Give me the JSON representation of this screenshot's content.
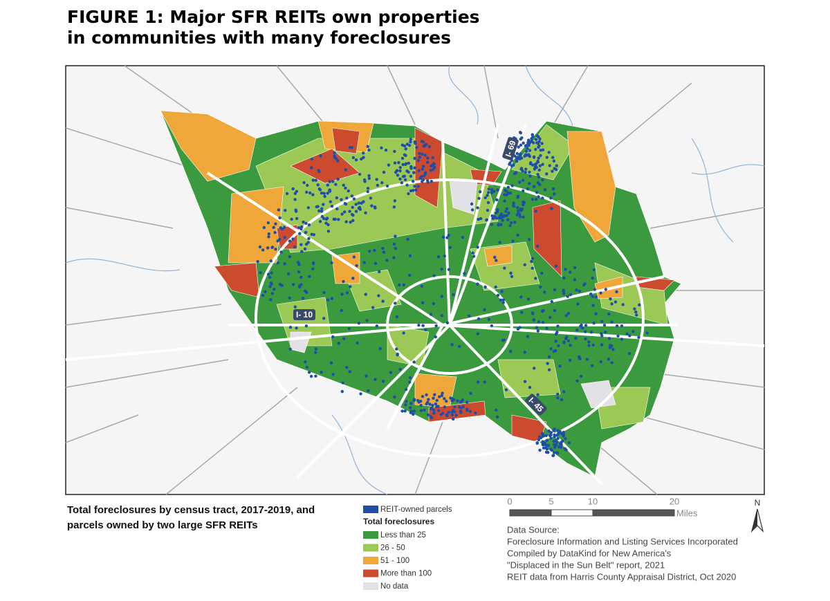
{
  "header": {
    "title": [
      "FIGURE 1: Major SFR REITs own properties",
      "in communities with many foreclosures"
    ]
  },
  "map": {
    "road_labels": [
      "I- 69",
      "I- 10",
      "I- 45"
    ]
  },
  "caption": [
    "Total foreclosures by census tract, 2017-2019, and",
    "parcels owned by two large SFR REITs"
  ],
  "legend": {
    "parcels": {
      "label": "REIT-owned parcels",
      "color": "#1f4ea8"
    },
    "title": "Total foreclosures",
    "items": [
      {
        "label": "Less than 25",
        "color": "#3c9a3e"
      },
      {
        "label": "26 - 50",
        "color": "#9cc955"
      },
      {
        "label": "51 - 100",
        "color": "#f0a73a"
      },
      {
        "label": "More than 100",
        "color": "#cc4a2d"
      },
      {
        "label": "No data",
        "color": "#e2e2e6"
      }
    ]
  },
  "scale": {
    "ticks": [
      "0",
      "5",
      "10",
      "20"
    ],
    "unit": "Miles"
  },
  "north": "N",
  "source": [
    "Data Source:",
    "Foreclosure Information and Listing Services Incorporated",
    "Compiled by DataKind for New America's",
    "\"Displaced in the Sun Belt\" report, 2021",
    "REIT data from Harris County Appraisal District, Oct 2020"
  ]
}
